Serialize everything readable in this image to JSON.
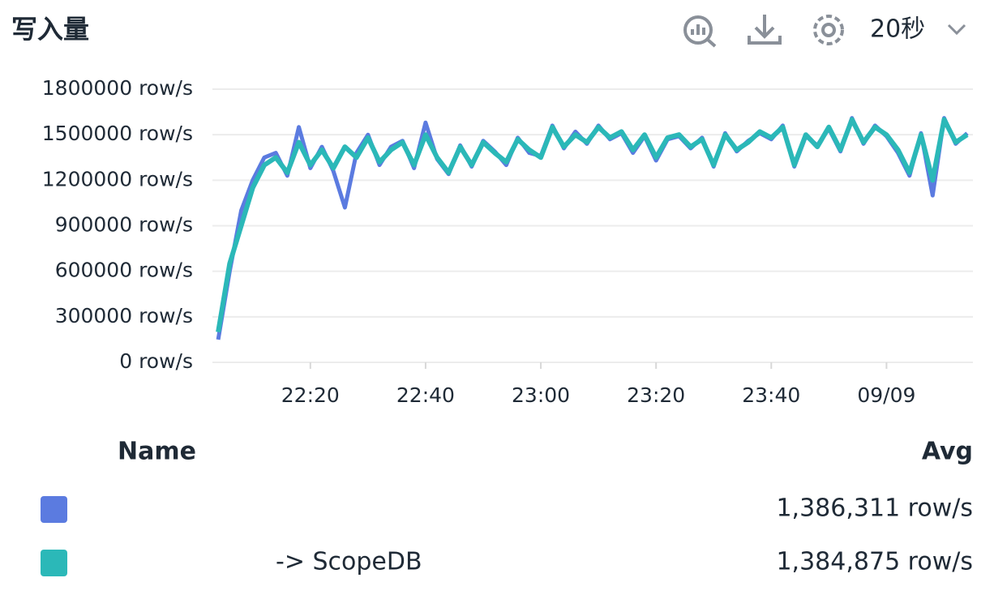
{
  "header": {
    "title": "写入量",
    "interval": "20秒"
  },
  "chart_data": {
    "type": "line",
    "x": [
      "22:04",
      "22:06",
      "22:08",
      "22:10",
      "22:12",
      "22:14",
      "22:16",
      "22:18",
      "22:20",
      "22:22",
      "22:24",
      "22:26",
      "22:28",
      "22:30",
      "22:32",
      "22:34",
      "22:36",
      "22:38",
      "22:40",
      "22:42",
      "22:44",
      "22:46",
      "22:48",
      "22:50",
      "22:52",
      "22:54",
      "22:56",
      "22:58",
      "23:00",
      "23:02",
      "23:04",
      "23:06",
      "23:08",
      "23:10",
      "23:12",
      "23:14",
      "23:16",
      "23:18",
      "23:20",
      "23:22",
      "23:24",
      "23:26",
      "23:28",
      "23:30",
      "23:32",
      "23:34",
      "23:36",
      "23:38",
      "23:40",
      "23:42",
      "23:44",
      "23:46",
      "23:48",
      "23:50",
      "23:52",
      "23:54",
      "23:56",
      "23:58",
      "00:00",
      "00:02",
      "00:04",
      "00:06",
      "00:08",
      "00:10",
      "00:12",
      "00:14"
    ],
    "series": [
      {
        "color": "#5b7be0",
        "avg": {
          "value": 1386311,
          "label": "1,386,311 row/s"
        },
        "values": [
          150000,
          600000,
          1000000,
          1200000,
          1350000,
          1380000,
          1230000,
          1550000,
          1280000,
          1420000,
          1260000,
          1020000,
          1380000,
          1500000,
          1300000,
          1420000,
          1460000,
          1280000,
          1580000,
          1340000,
          1240000,
          1430000,
          1290000,
          1460000,
          1390000,
          1300000,
          1480000,
          1380000,
          1360000,
          1560000,
          1410000,
          1520000,
          1440000,
          1560000,
          1470000,
          1510000,
          1380000,
          1490000,
          1330000,
          1470000,
          1490000,
          1410000,
          1480000,
          1290000,
          1510000,
          1390000,
          1460000,
          1510000,
          1470000,
          1560000,
          1290000,
          1490000,
          1430000,
          1540000,
          1390000,
          1610000,
          1440000,
          1560000,
          1490000,
          1380000,
          1230000,
          1510000,
          1100000,
          1610000,
          1440000,
          1510000
        ]
      },
      {
        "name": "-> ScopeDB",
        "color": "#2bb8b8",
        "avg": {
          "value": 1384875,
          "label": "1,384,875 row/s"
        },
        "values": [
          200000,
          650000,
          900000,
          1150000,
          1300000,
          1350000,
          1250000,
          1450000,
          1300000,
          1400000,
          1280000,
          1420000,
          1350000,
          1480000,
          1320000,
          1400000,
          1450000,
          1300000,
          1500000,
          1350000,
          1250000,
          1420000,
          1300000,
          1450000,
          1380000,
          1320000,
          1470000,
          1400000,
          1350000,
          1550000,
          1420000,
          1500000,
          1450000,
          1550000,
          1480000,
          1520000,
          1400000,
          1500000,
          1350000,
          1480000,
          1500000,
          1420000,
          1470000,
          1300000,
          1500000,
          1400000,
          1450000,
          1520000,
          1480000,
          1550000,
          1300000,
          1500000,
          1420000,
          1550000,
          1400000,
          1600000,
          1450000,
          1550000,
          1500000,
          1400000,
          1250000,
          1500000,
          1200000,
          1600000,
          1450000,
          1500000
        ]
      }
    ],
    "xlim": [
      "22:03",
      "00:15"
    ],
    "xticks": [
      "22:20",
      "22:40",
      "23:00",
      "23:20",
      "23:40",
      {
        "value": "00:00",
        "label": "09/09"
      }
    ],
    "ylim": [
      0,
      1800000
    ],
    "yticks": [
      {
        "value": 0,
        "label": "0 row/s"
      },
      {
        "value": 300000,
        "label": "300000 row/s"
      },
      {
        "value": 600000,
        "label": "600000 row/s"
      },
      {
        "value": 900000,
        "label": "900000 row/s"
      },
      {
        "value": 1200000,
        "label": "1200000 row/s"
      },
      {
        "value": 1500000,
        "label": "1500000 row/s"
      },
      {
        "value": 1800000,
        "label": "1800000 row/s"
      }
    ],
    "grid": true,
    "legend_columns": [
      "Name",
      "Avg"
    ]
  }
}
